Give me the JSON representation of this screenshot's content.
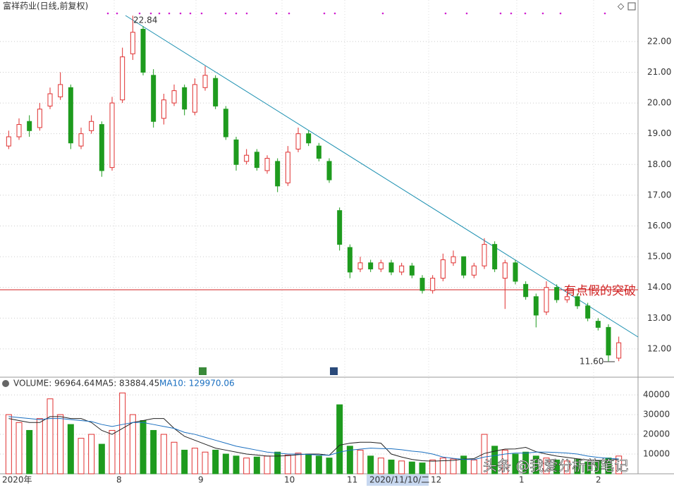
{
  "chart_data": {
    "type": "candlestick",
    "title": "富祥药业(日线,前复权)",
    "open": [
      18.6,
      18.9,
      19.4,
      19.2,
      19.9,
      20.2,
      20.5,
      18.6,
      19.1,
      19.3,
      17.9,
      20.1,
      21.6,
      22.4,
      20.9,
      19.5,
      20.0,
      20.5,
      19.7,
      20.5,
      20.8,
      19.8,
      18.8,
      18.1,
      18.4,
      17.8,
      18.1,
      17.4,
      18.5,
      19.0,
      18.6,
      18.1,
      16.5,
      15.3,
      14.6,
      14.8,
      14.6,
      14.8,
      14.5,
      14.7,
      14.3,
      13.9,
      14.3,
      14.8,
      15.0,
      14.4,
      14.7,
      15.4,
      14.3,
      14.8,
      14.1,
      13.7,
      13.2,
      14.0,
      13.6,
      13.7,
      13.4,
      12.9,
      12.7,
      11.7
    ],
    "high": [
      19.1,
      19.5,
      19.6,
      20.0,
      20.5,
      21.0,
      20.6,
      19.2,
      19.6,
      19.4,
      20.2,
      21.8,
      22.84,
      22.5,
      21.1,
      20.3,
      20.6,
      20.6,
      20.8,
      21.2,
      20.9,
      19.9,
      18.9,
      18.5,
      18.5,
      18.3,
      18.2,
      18.6,
      19.2,
      19.1,
      18.7,
      18.2,
      16.6,
      15.4,
      15.0,
      14.9,
      14.9,
      14.9,
      14.8,
      14.8,
      14.4,
      14.4,
      15.1,
      15.2,
      15.0,
      14.8,
      15.6,
      15.5,
      14.9,
      14.9,
      14.2,
      13.8,
      14.2,
      14.1,
      13.8,
      13.8,
      13.5,
      13.0,
      12.8,
      12.4
    ],
    "low": [
      18.5,
      18.8,
      18.9,
      19.1,
      19.8,
      20.1,
      18.5,
      18.5,
      19.0,
      17.6,
      17.8,
      20.0,
      21.4,
      20.9,
      19.2,
      19.3,
      19.9,
      19.6,
      19.6,
      20.4,
      19.8,
      18.8,
      17.8,
      18.0,
      17.8,
      17.7,
      17.1,
      17.3,
      18.4,
      18.6,
      18.1,
      17.4,
      15.2,
      14.3,
      14.5,
      14.5,
      14.5,
      14.4,
      14.4,
      14.3,
      13.8,
      13.8,
      14.2,
      14.7,
      14.3,
      14.3,
      14.6,
      14.5,
      13.3,
      14.1,
      13.6,
      12.7,
      13.1,
      13.5,
      13.5,
      13.3,
      12.9,
      12.6,
      11.6,
      11.6
    ],
    "close": [
      18.9,
      19.3,
      19.1,
      19.8,
      20.3,
      20.6,
      18.7,
      19.0,
      19.4,
      17.8,
      20.0,
      21.5,
      22.3,
      21.0,
      19.4,
      20.1,
      20.4,
      19.8,
      20.6,
      20.9,
      19.9,
      18.9,
      18.0,
      18.3,
      17.9,
      18.2,
      17.3,
      18.4,
      19.0,
      18.7,
      18.2,
      17.5,
      15.4,
      14.5,
      14.8,
      14.6,
      14.8,
      14.5,
      14.7,
      14.4,
      13.9,
      14.3,
      14.9,
      15.0,
      14.4,
      14.7,
      15.4,
      14.6,
      14.8,
      14.2,
      13.7,
      13.1,
      14.0,
      13.6,
      13.7,
      13.4,
      13.0,
      12.7,
      11.8,
      12.2
    ],
    "ylim": [
      11.08,
      23.35
    ],
    "yticks": [
      {
        "value": 12,
        "label": "12.00"
      },
      {
        "value": 13,
        "label": "13.00"
      },
      {
        "value": 14,
        "label": "14.00"
      },
      {
        "value": 15,
        "label": "15.00"
      },
      {
        "value": 16,
        "label": "16.00"
      },
      {
        "value": 17,
        "label": "17.00"
      },
      {
        "value": 18,
        "label": "18.00"
      },
      {
        "value": 19,
        "label": "19.00"
      },
      {
        "value": 20,
        "label": "20.00"
      },
      {
        "value": 21,
        "label": "21.00"
      },
      {
        "value": 22,
        "label": "22.00"
      }
    ],
    "high_label": "22.84",
    "low_label": "11.60",
    "annotation": "有点假的突破",
    "x_labels": [
      "2020年",
      "8",
      "9",
      "10",
      "11",
      "2020/11/10/二",
      "12",
      "1",
      "2"
    ],
    "volume_panel": {
      "legend": [
        "VOLUME: 96964.64",
        "MA5: 83884.45",
        "MA10: 129970.06"
      ],
      "volume": [
        30000,
        26000,
        22000,
        28000,
        38000,
        30000,
        25000,
        18000,
        20000,
        15000,
        22000,
        41000,
        30000,
        27000,
        22000,
        20000,
        16000,
        12000,
        13000,
        11000,
        12000,
        10000,
        9000,
        8000,
        8500,
        9000,
        11000,
        9500,
        10500,
        10000,
        9000,
        8000,
        35000,
        14000,
        12000,
        9000,
        8000,
        7000,
        6500,
        6000,
        5500,
        7000,
        8000,
        7500,
        9000,
        7000,
        20000,
        14000,
        12000,
        10000,
        11000,
        9000,
        8000,
        7000,
        6500,
        7500,
        6000,
        6500,
        8000,
        9000
      ],
      "ma5": [
        28000,
        27000,
        26000,
        26000,
        29000,
        29000,
        28000,
        28000,
        26000,
        22000,
        20000,
        23000,
        26000,
        27000,
        28000,
        28000,
        23000,
        19000,
        17000,
        15000,
        13000,
        12000,
        11000,
        10000,
        9500,
        9000,
        9000,
        9200,
        9700,
        10000,
        10000,
        9400,
        14500,
        15500,
        16000,
        16000,
        15500,
        10000,
        8500,
        7300,
        6600,
        6400,
        6600,
        6800,
        7400,
        7700,
        10300,
        11500,
        12500,
        12600,
        13400,
        11200,
        10000,
        9000,
        8300,
        7600,
        7000,
        6800,
        6900,
        7400
      ],
      "ma10": [
        29000,
        28500,
        28000,
        27500,
        28000,
        28000,
        27500,
        27000,
        26500,
        25000,
        24000,
        25000,
        26000,
        26000,
        25000,
        24000,
        23000,
        21000,
        20000,
        18500,
        17000,
        15500,
        14000,
        13000,
        12000,
        11000,
        10500,
        10000,
        10000,
        9800,
        9500,
        9400,
        11000,
        12000,
        12500,
        13000,
        12800,
        12700,
        12200,
        11500,
        11000,
        10000,
        8500,
        7800,
        7300,
        7200,
        8500,
        9200,
        10000,
        10500,
        10500,
        11000,
        11000,
        10800,
        10500,
        10000,
        9000,
        8300,
        7800,
        7500
      ],
      "ylim": [
        0,
        42900
      ],
      "yticks": [
        10000,
        20000,
        30000,
        40000
      ]
    },
    "watermark": "头条 @我爱分析的笔记"
  }
}
